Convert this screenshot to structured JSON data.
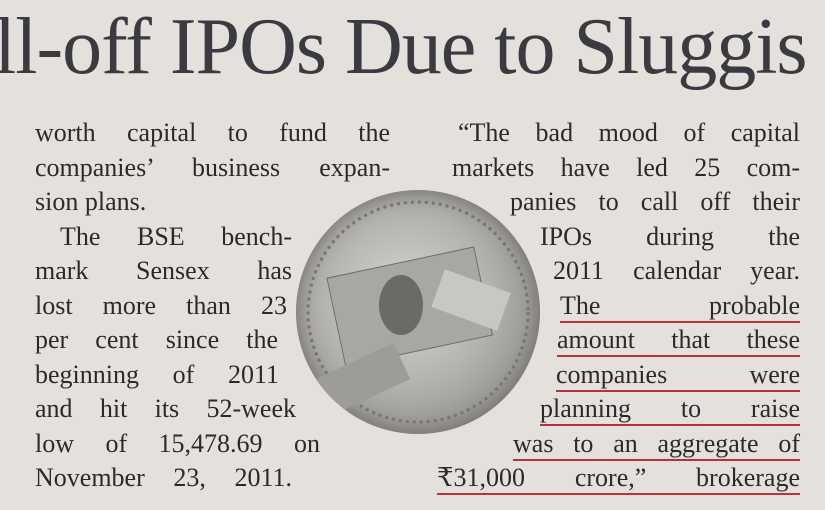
{
  "headline": "ll-off IPOs Due to Sluggis",
  "left_column": {
    "lines": [
      "worth capital to fund the",
      "companies’ business expan-",
      "sion plans.",
      "The BSE bench-",
      "mark Sensex has",
      "lost more than 23",
      "per cent since the",
      "beginning of 2011",
      "and hit its 52-week",
      "low of 15,478.69 on",
      "November 23, 2011."
    ]
  },
  "right_column": {
    "lines": [
      "“The bad mood of capital",
      "markets have led 25 com-",
      "panies to call off their",
      "IPOs during the",
      "2011 calendar year.",
      "The probable",
      "amount that these",
      "companies were",
      "planning to raise",
      "was to an aggregate of",
      "₹31,000 crore,” brokerage"
    ]
  }
}
